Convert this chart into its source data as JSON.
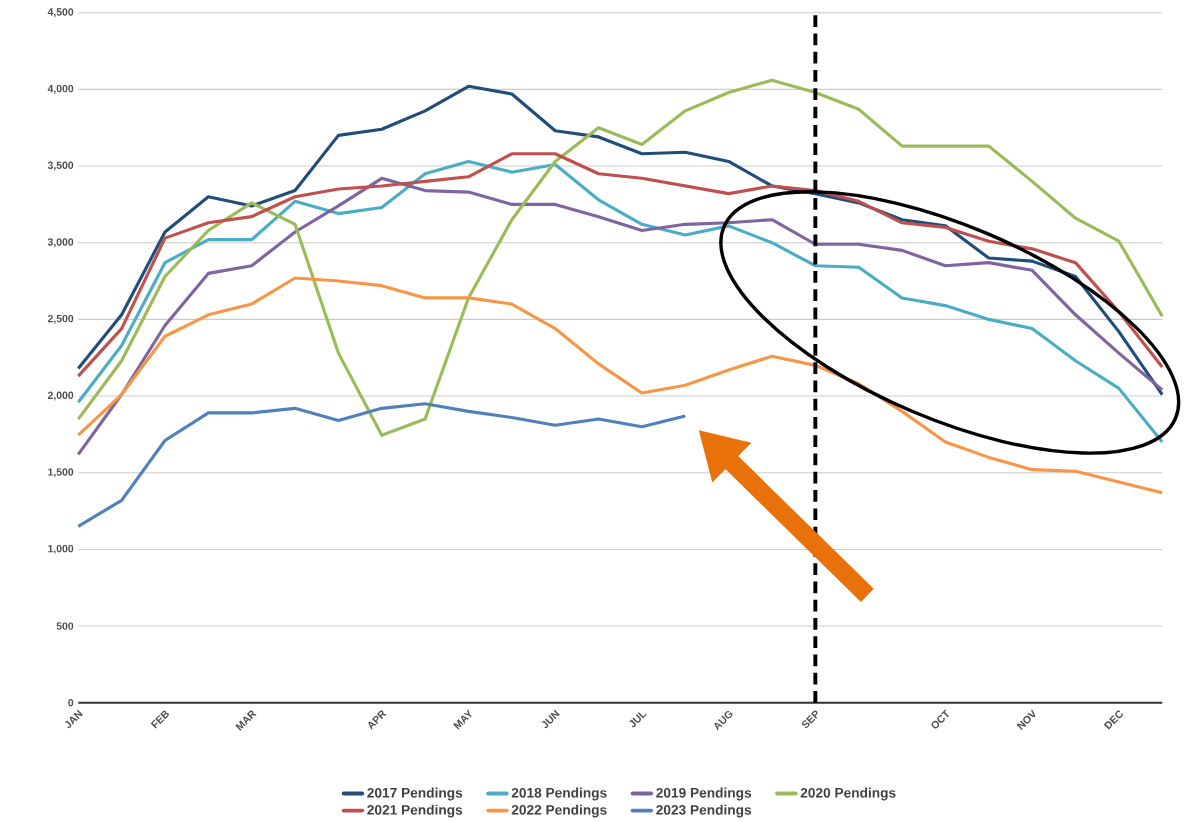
{
  "chart_data": {
    "type": "line",
    "categories": [
      "JAN",
      null,
      "FEB",
      null,
      "MAR",
      null,
      null,
      "APR",
      null,
      "MAY",
      null,
      "JUN",
      null,
      "JUL",
      null,
      "AUG",
      null,
      "SEP",
      null,
      null,
      "OCT",
      null,
      "NOV",
      null,
      "DEC",
      null
    ],
    "series": [
      {
        "name": "2017 Pendings",
        "color": "#1f4e79",
        "values": [
          2180,
          2530,
          3070,
          3300,
          3240,
          3340,
          3700,
          3740,
          3860,
          4020,
          3970,
          3730,
          3690,
          3580,
          3590,
          3530,
          3370,
          3320,
          3260,
          3150,
          3110,
          2900,
          2880,
          2780,
          2420,
          2010
        ]
      },
      {
        "name": "2018 Pendings",
        "color": "#4bacc6",
        "values": [
          1960,
          2330,
          2870,
          3020,
          3020,
          3270,
          3190,
          3230,
          3450,
          3530,
          3460,
          3510,
          3280,
          3120,
          3050,
          3110,
          3000,
          2850,
          2840,
          2640,
          2590,
          2500,
          2440,
          2230,
          2050,
          1700
        ]
      },
      {
        "name": "2019 Pendings",
        "color": "#8064a2",
        "values": [
          1620,
          2010,
          2460,
          2800,
          2850,
          3070,
          3240,
          3420,
          3340,
          3330,
          3250,
          3250,
          3170,
          3080,
          3120,
          3130,
          3150,
          2990,
          2990,
          2950,
          2850,
          2870,
          2820,
          2530,
          2280,
          2040
        ]
      },
      {
        "name": "2020 Pendings",
        "color": "#9bbb59",
        "values": [
          1850,
          2230,
          2780,
          3080,
          3260,
          3120,
          2280,
          1745,
          1850,
          2640,
          3150,
          3530,
          3750,
          3640,
          3860,
          3980,
          4060,
          3980,
          3870,
          3630,
          3630,
          3630,
          3400,
          3160,
          3010,
          2520
        ]
      },
      {
        "name": "2021 Pendings",
        "color": "#c0504d",
        "values": [
          2130,
          2440,
          3030,
          3130,
          3170,
          3300,
          3350,
          3370,
          3400,
          3430,
          3580,
          3580,
          3450,
          3420,
          3370,
          3320,
          3370,
          3340,
          3270,
          3130,
          3100,
          3010,
          2960,
          2870,
          2550,
          2190
        ]
      },
      {
        "name": "2022 Pendings",
        "color": "#f79646",
        "values": [
          1745,
          2010,
          2390,
          2530,
          2600,
          2770,
          2750,
          2720,
          2640,
          2640,
          2600,
          2440,
          2210,
          2020,
          2070,
          2170,
          2260,
          2200,
          2080,
          1900,
          1700,
          1600,
          1520,
          1510,
          1440,
          1370
        ]
      },
      {
        "name": "2023 Pendings",
        "color": "#4f81bd",
        "values": [
          1150,
          1320,
          1710,
          1890,
          1890,
          1920,
          1840,
          1920,
          1950,
          1900,
          1860,
          1810,
          1850,
          1800,
          1870,
          null,
          null,
          null,
          null,
          null,
          null,
          null,
          null,
          null,
          null,
          null
        ]
      }
    ],
    "ylim": [
      0,
      4500
    ],
    "yticks": [
      0,
      500,
      {
        "value": 1000,
        "label": "1,000"
      },
      {
        "value": 1500,
        "label": "1,500"
      },
      {
        "value": 2000,
        "label": "2,000"
      },
      {
        "value": 2500,
        "label": "2,500"
      },
      {
        "value": 3000,
        "label": "3,000"
      },
      {
        "value": 3500,
        "label": "3,500"
      },
      {
        "value": 4000,
        "label": "4,000"
      },
      {
        "value": 4500,
        "label": "4,500"
      }
    ],
    "ref_lines": [
      {
        "axis": "x",
        "value": "SEP",
        "color": "#000000",
        "line_style": "dashed"
      }
    ],
    "grid": "y",
    "legend": "bottom",
    "marker": "none",
    "line_style": "solid"
  }
}
